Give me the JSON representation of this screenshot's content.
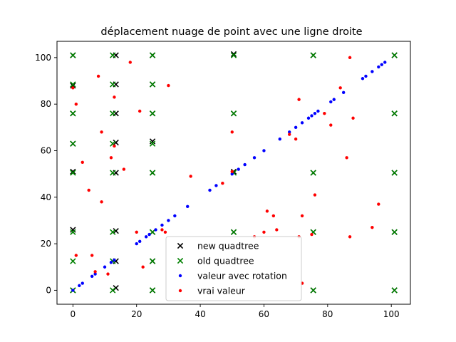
{
  "chart_data": {
    "type": "scatter",
    "title": "déplacement nuage de point avec une ligne droite",
    "xlabel": "",
    "ylabel": "",
    "xlim": [
      -5,
      106
    ],
    "ylim": [
      -6,
      107
    ],
    "xticks": [
      0,
      20,
      40,
      60,
      80,
      100
    ],
    "yticks": [
      0,
      20,
      40,
      60,
      80,
      100
    ],
    "grid": false,
    "legend_position": "bottom-center",
    "series": [
      {
        "name": "new quadtree",
        "marker": "x",
        "color": "#000000",
        "points": [
          [
            0,
            0
          ],
          [
            13.5,
            1
          ],
          [
            0,
            26
          ],
          [
            13.5,
            25.5
          ],
          [
            13.5,
            12.5
          ],
          [
            0,
            51
          ],
          [
            13.5,
            50.5
          ],
          [
            0,
            63
          ],
          [
            13.5,
            63.5
          ],
          [
            0,
            76
          ],
          [
            13.5,
            76
          ],
          [
            0,
            88
          ],
          [
            13.5,
            88.5
          ],
          [
            0,
            101
          ],
          [
            13.5,
            101
          ],
          [
            25,
            101
          ],
          [
            25,
            88.5
          ],
          [
            25,
            76
          ],
          [
            25,
            64
          ],
          [
            25,
            50.5
          ],
          [
            25,
            25
          ],
          [
            25,
            12.5
          ],
          [
            25,
            0
          ],
          [
            50.5,
            101.5
          ],
          [
            50.5,
            76
          ],
          [
            50.5,
            51
          ],
          [
            50.5,
            25
          ],
          [
            75.5,
            101
          ],
          [
            75.5,
            50.5
          ],
          [
            75.5,
            25
          ],
          [
            75.5,
            0
          ],
          [
            101,
            101
          ],
          [
            101,
            76
          ],
          [
            101,
            50.5
          ],
          [
            101,
            25
          ],
          [
            101,
            0
          ]
        ]
      },
      {
        "name": "old quadtree",
        "marker": "x",
        "color": "#008000",
        "points": [
          [
            0,
            0
          ],
          [
            0,
            12.5
          ],
          [
            0,
            25
          ],
          [
            12.5,
            0
          ],
          [
            12.5,
            12.5
          ],
          [
            12.5,
            25
          ],
          [
            0,
            50.5
          ],
          [
            12.5,
            50.5
          ],
          [
            0,
            63
          ],
          [
            12.5,
            63
          ],
          [
            0,
            76
          ],
          [
            12.5,
            76
          ],
          [
            0,
            88.5
          ],
          [
            12.5,
            88.5
          ],
          [
            0,
            101
          ],
          [
            12.5,
            101
          ],
          [
            25,
            101
          ],
          [
            25,
            88.5
          ],
          [
            25,
            76
          ],
          [
            25,
            63
          ],
          [
            25,
            50.5
          ],
          [
            25,
            25
          ],
          [
            25,
            12.5
          ],
          [
            25,
            0
          ],
          [
            50.5,
            101
          ],
          [
            50.5,
            76
          ],
          [
            50.5,
            50.5
          ],
          [
            50.5,
            25
          ],
          [
            75.5,
            101
          ],
          [
            75.5,
            50.5
          ],
          [
            75.5,
            25
          ],
          [
            75.5,
            0
          ],
          [
            101,
            101
          ],
          [
            101,
            76
          ],
          [
            101,
            50.5
          ],
          [
            101,
            25
          ],
          [
            101,
            0
          ]
        ]
      },
      {
        "name": "valeur avec rotation",
        "marker": "dot",
        "color": "#0000ff",
        "points": [
          [
            0,
            0
          ],
          [
            2,
            2
          ],
          [
            3,
            3
          ],
          [
            6,
            6
          ],
          [
            7,
            7
          ],
          [
            10,
            10
          ],
          [
            12,
            12
          ],
          [
            13,
            13
          ],
          [
            20,
            20
          ],
          [
            21,
            21
          ],
          [
            23,
            23
          ],
          [
            24,
            24
          ],
          [
            26,
            26
          ],
          [
            28,
            28
          ],
          [
            30,
            30
          ],
          [
            32,
            32
          ],
          [
            36,
            36
          ],
          [
            43,
            43
          ],
          [
            45,
            45
          ],
          [
            50,
            50
          ],
          [
            52,
            52
          ],
          [
            54,
            54
          ],
          [
            57,
            57
          ],
          [
            60,
            60
          ],
          [
            65,
            65
          ],
          [
            68,
            68
          ],
          [
            70,
            70
          ],
          [
            72,
            72
          ],
          [
            74,
            74
          ],
          [
            75,
            75
          ],
          [
            76,
            76
          ],
          [
            77,
            77
          ],
          [
            81,
            81
          ],
          [
            82,
            82
          ],
          [
            85,
            85
          ],
          [
            91,
            91
          ],
          [
            92,
            92
          ],
          [
            94,
            94
          ],
          [
            96,
            96
          ],
          [
            97,
            97
          ],
          [
            98,
            98
          ]
        ]
      },
      {
        "name": "vrai valeur",
        "marker": "dot",
        "color": "#ff0000",
        "points": [
          [
            0,
            87
          ],
          [
            1,
            80
          ],
          [
            1,
            15
          ],
          [
            3,
            55
          ],
          [
            5,
            43
          ],
          [
            6,
            15
          ],
          [
            7,
            8
          ],
          [
            8,
            92
          ],
          [
            9,
            68
          ],
          [
            9,
            38
          ],
          [
            11,
            7
          ],
          [
            12,
            57
          ],
          [
            13,
            83
          ],
          [
            13,
            62
          ],
          [
            16,
            52
          ],
          [
            18,
            98
          ],
          [
            20,
            25
          ],
          [
            21,
            77
          ],
          [
            22,
            10
          ],
          [
            28,
            26
          ],
          [
            29,
            25
          ],
          [
            30,
            88
          ],
          [
            37,
            49
          ],
          [
            47,
            46
          ],
          [
            50,
            68
          ],
          [
            50,
            51
          ],
          [
            57,
            23
          ],
          [
            60,
            25
          ],
          [
            61,
            34
          ],
          [
            63,
            32
          ],
          [
            64,
            26
          ],
          [
            68,
            67
          ],
          [
            70,
            65
          ],
          [
            71,
            82
          ],
          [
            71,
            23
          ],
          [
            72,
            32
          ],
          [
            72,
            3
          ],
          [
            75,
            24
          ],
          [
            76,
            41
          ],
          [
            79,
            76
          ],
          [
            81,
            71
          ],
          [
            84,
            87
          ],
          [
            86,
            57
          ],
          [
            87,
            100
          ],
          [
            87,
            23
          ],
          [
            88,
            74
          ],
          [
            94,
            27
          ],
          [
            96,
            37
          ]
        ]
      }
    ]
  }
}
